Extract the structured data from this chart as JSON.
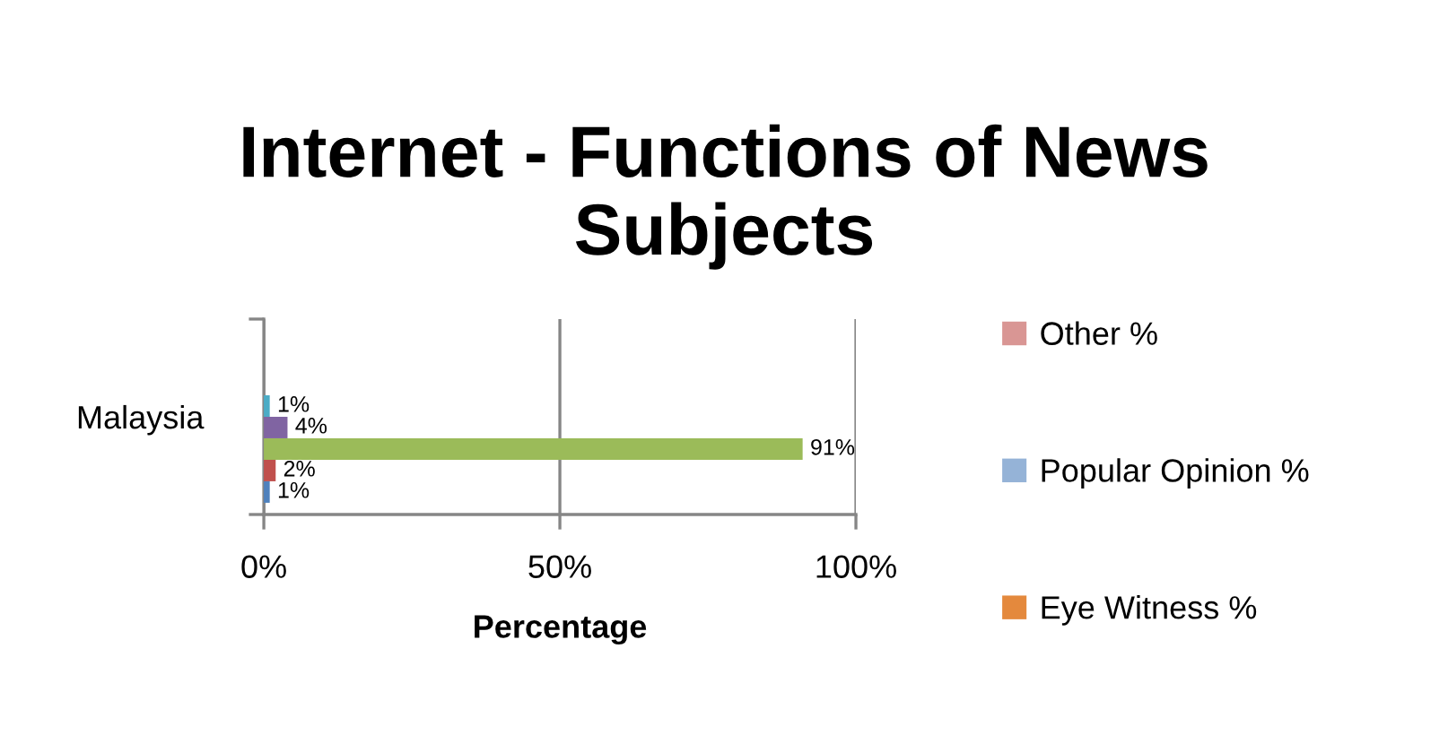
{
  "chart_data": {
    "type": "bar",
    "orientation": "horizontal",
    "title": "Internet - Functions of News Subjects",
    "xlabel": "Percentage",
    "categories": [
      "Malaysia"
    ],
    "series": [
      {
        "color": "#4f81bd",
        "values": [
          1
        ],
        "value_labels": [
          "1%"
        ]
      },
      {
        "color": "#c0504d",
        "values": [
          2
        ],
        "value_labels": [
          "2%"
        ]
      },
      {
        "color": "#9bbb59",
        "values": [
          91
        ],
        "value_labels": [
          "91%"
        ]
      },
      {
        "color": "#8064a2",
        "values": [
          4
        ],
        "value_labels": [
          "4%"
        ]
      },
      {
        "color": "#4bacc6",
        "values": [
          1
        ],
        "value_labels": [
          "1%"
        ]
      },
      {
        "name": "Eye Witness %",
        "color": "#e4893d",
        "values": [
          null
        ]
      },
      {
        "name": "Popular Opinion %",
        "color": "#95b3d7",
        "values": [
          null
        ]
      },
      {
        "name": "Other %",
        "color": "#d99694",
        "values": [
          null
        ]
      }
    ],
    "xlim": [
      0,
      100
    ],
    "xticks": [
      {
        "value": 0,
        "label": "0%"
      },
      {
        "value": 50,
        "label": "50%"
      },
      {
        "value": 100,
        "label": "100%"
      }
    ],
    "grid": "x",
    "legend": "right"
  }
}
